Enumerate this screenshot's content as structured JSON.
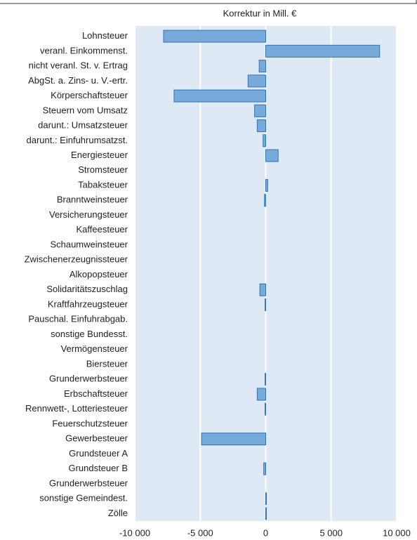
{
  "chart_data": {
    "type": "barh",
    "title": "Korrektur in Mill. €",
    "categories": [
      "Lohnsteuer",
      "veranl. Einkommenst.",
      "nicht veranl. St. v. Ertrag",
      "AbgSt. a. Zins- u. V.-ertr.",
      "Körperschaftsteuer",
      "Steuern vom Umsatz",
      "darunt.: Umsatzsteuer",
      "darunt.: Einfuhrumsatzst.",
      "Energiesteuer",
      "Stromsteuer",
      "Tabaksteuer",
      "Branntweinsteuer",
      "Versicherungsteuer",
      "Kaffeesteuer",
      "Schaumweinsteuer",
      "Zwischenerzeugnissteuer",
      "Alkopopsteuer",
      "Solidaritätszuschlag",
      "Kraftfahrzeugsteuer",
      "Pauschal. Einfuhrabgab.",
      "sonstige Bundesst.",
      "Vermögensteuer",
      "Biersteuer",
      "Grunderwerbsteuer",
      "Erbschaftsteuer",
      "Rennwett-, Lotteriesteuer",
      "Feuerschutzsteuer",
      "Gewerbesteuer",
      "Grundsteuer A",
      "Grundsteuer B",
      "Grunderwerbsteuer",
      "sonstige Gemeindest.",
      "Zölle"
    ],
    "values": [
      -7800,
      8700,
      -500,
      -1350,
      -7000,
      -850,
      -650,
      -200,
      950,
      0,
      150,
      -100,
      0,
      0,
      0,
      0,
      0,
      -450,
      -50,
      0,
      0,
      0,
      0,
      -50,
      -650,
      -50,
      0,
      -4900,
      0,
      -150,
      0,
      50,
      50
    ],
    "color": "#76abd9",
    "edge_color": "#2f74b5",
    "background": "#dfe8f5",
    "xlim": [
      -10000,
      10000
    ],
    "xticks": [
      {
        "value": -10000,
        "label": "-10 000"
      },
      {
        "value": -5000,
        "label": "-5 000"
      },
      0,
      {
        "value": 5000,
        "label": "5 000"
      },
      {
        "value": 10000,
        "label": "10 000"
      }
    ],
    "grid": true
  }
}
